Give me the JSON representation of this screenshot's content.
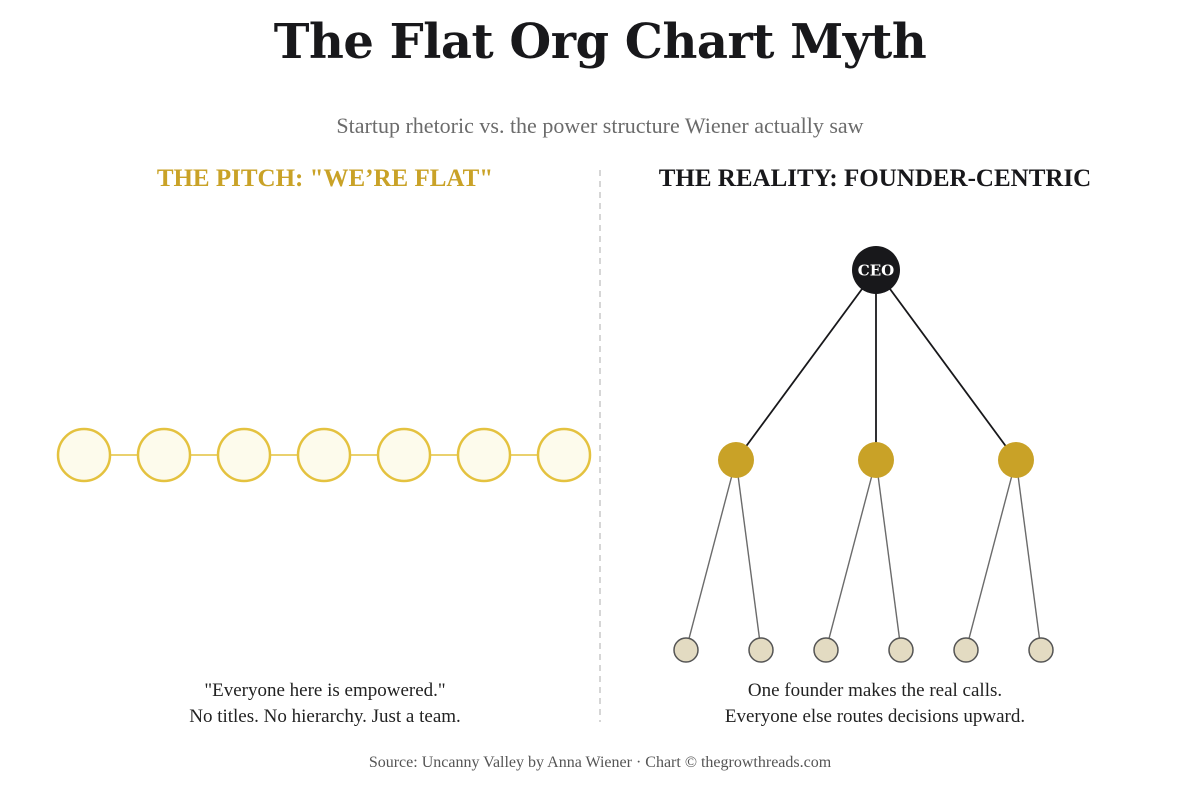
{
  "title": "The Flat Org Chart Myth",
  "subtitle": "Startup rhetoric vs. the power structure Wiener actually saw",
  "left_panel": {
    "heading": "THE PITCH: \"WE’RE FLAT\"",
    "node_count": 7,
    "caption_line1": "\"Everyone here is empowered.\"",
    "caption_line2": "No titles. No hierarchy. Just a team."
  },
  "right_panel": {
    "heading": "THE REALITY: FOUNDER-CENTRIC",
    "root_label": "CEO",
    "managers": 3,
    "reports_per_manager": 2,
    "caption_line1": "One founder makes the real calls.",
    "caption_line2": "Everyone else routes decisions upward."
  },
  "source": "Source: Uncanny Valley by Anna Wiener · Chart © thegrowthreads.com",
  "colors": {
    "accent_gold": "#c9a227",
    "flat_node_fill": "#fdfbec",
    "flat_node_stroke": "#e4c23f",
    "ceo_fill": "#18181b",
    "leaf_fill": "#e3dbc2",
    "leaf_stroke": "#555555",
    "divider": "#c8c8c8"
  }
}
